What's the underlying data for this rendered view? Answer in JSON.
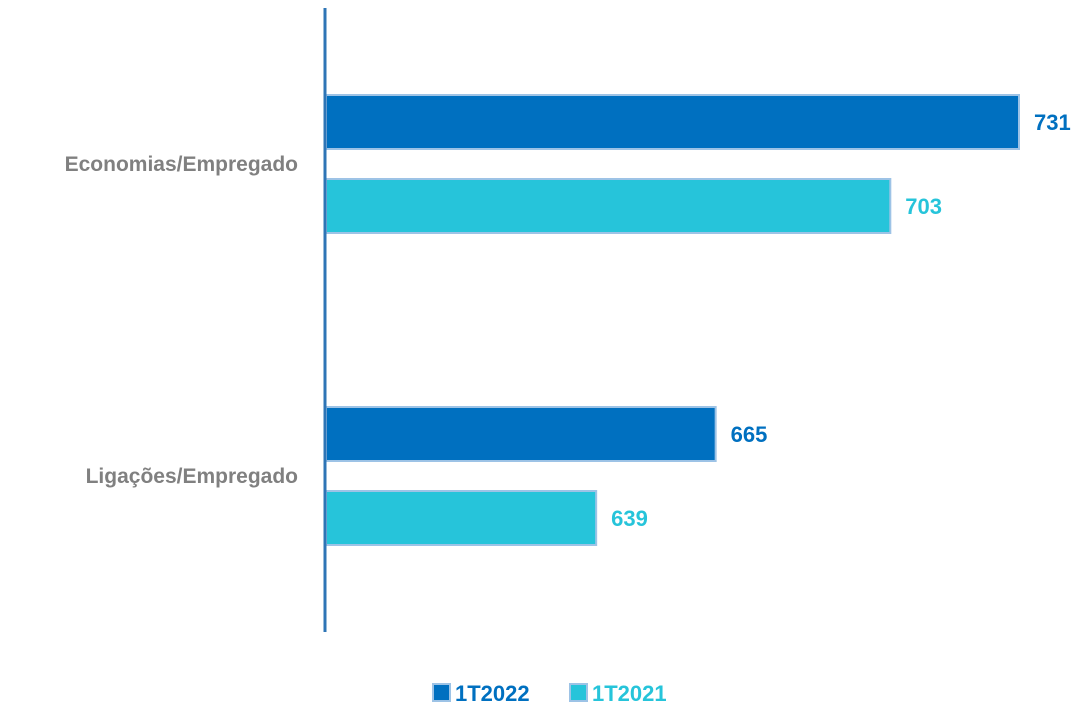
{
  "chart_data": {
    "type": "bar",
    "orientation": "horizontal",
    "categories": [
      "Economias/Empregado",
      "Ligações/Empregado"
    ],
    "series": [
      {
        "name": "1T2022",
        "values": [
          731,
          665
        ],
        "color": "#0070C0"
      },
      {
        "name": "1T2021",
        "values": [
          703,
          639
        ],
        "color": "#26C4DA"
      }
    ],
    "value_labels": {
      "1T2022": [
        "731",
        "665"
      ],
      "1T2021": [
        "703",
        "639"
      ]
    },
    "xlim": [
      580,
      731
    ],
    "title": "",
    "xlabel": "",
    "ylabel": "",
    "grid": false,
    "legend_position": "bottom-center",
    "axis_color": "#2E75B6",
    "category_label_color": "#808080"
  }
}
